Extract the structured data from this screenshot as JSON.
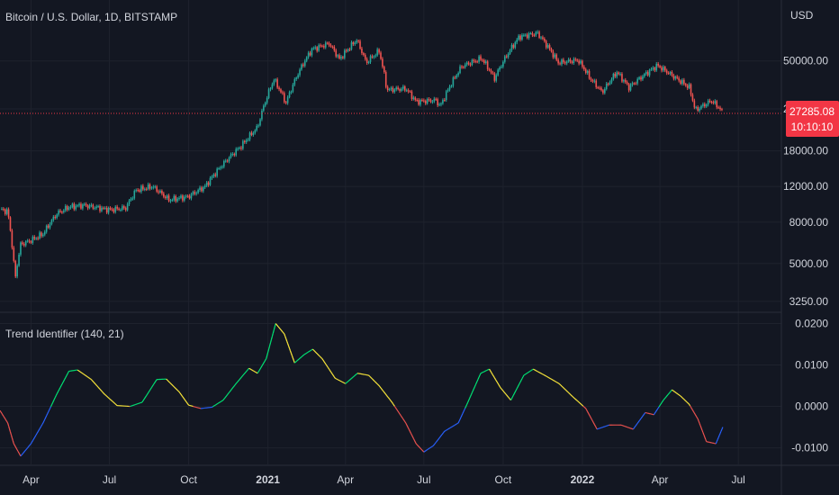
{
  "main_pane": {
    "symbol_title": "Bitcoin / U.S. Dollar, 1D, BITSTAMP",
    "currency_label": "USD",
    "price_ticks": [
      {
        "label": "50000.00",
        "value": 50000
      },
      {
        "label": "29000.00",
        "value": 29000
      },
      {
        "label": "18000.00",
        "value": 18000
      },
      {
        "label": "12000.00",
        "value": 12000
      },
      {
        "label": "8000.00",
        "value": 8000
      },
      {
        "label": "5000.00",
        "value": 5000
      },
      {
        "label": "3250.00",
        "value": 3250
      }
    ],
    "last_price_label": "27285.08",
    "countdown_label": "10:10:10",
    "last_price_value": 27285.08,
    "up_color": "#26a69a",
    "down_color": "#ef5350",
    "price_tag_color": "#f23645"
  },
  "indicator_pane": {
    "title": "Trend Identifier (140, 21)",
    "ticks": [
      {
        "label": "0.0200",
        "value": 0.02
      },
      {
        "label": "0.0100",
        "value": 0.01
      },
      {
        "label": "0.0000",
        "value": 0.0
      },
      {
        "label": "-0.0100",
        "value": -0.01
      }
    ],
    "trend_colors": {
      "strong_up": "#00e676",
      "up": "#ffeb3b",
      "down": "#ef5350",
      "strong_down": "#2962ff"
    }
  },
  "time_axis": {
    "labels": [
      {
        "label": "Apr",
        "bold": false
      },
      {
        "label": "Jul",
        "bold": false
      },
      {
        "label": "Oct",
        "bold": false
      },
      {
        "label": "2021",
        "bold": true
      },
      {
        "label": "Apr",
        "bold": false
      },
      {
        "label": "Jul",
        "bold": false
      },
      {
        "label": "Oct",
        "bold": false
      },
      {
        "label": "2022",
        "bold": true
      },
      {
        "label": "Apr",
        "bold": false
      },
      {
        "label": "Jul",
        "bold": false
      }
    ]
  },
  "chart_data": [
    {
      "type": "candlestick",
      "title": "Bitcoin / U.S. Dollar, 1D, BITSTAMP",
      "ylabel": "USD",
      "y_scale": "log",
      "ylim": [
        2900,
        100000
      ],
      "x_start": "2020-02-25",
      "x_end": "2022-08-20",
      "series": [
        {
          "name": "BTCUSD",
          "points": [
            [
              "2020-02-25",
              9300
            ],
            [
              "2020-03-05",
              9000
            ],
            [
              "2020-03-12",
              5000
            ],
            [
              "2020-03-13",
              4000
            ],
            [
              "2020-03-20",
              6200
            ],
            [
              "2020-04-01",
              6500
            ],
            [
              "2020-04-15",
              7000
            ],
            [
              "2020-05-01",
              8800
            ],
            [
              "2020-05-15",
              9500
            ],
            [
              "2020-06-01",
              9700
            ],
            [
              "2020-07-01",
              9200
            ],
            [
              "2020-07-20",
              9400
            ],
            [
              "2020-08-01",
              11500
            ],
            [
              "2020-08-20",
              12000
            ],
            [
              "2020-09-08",
              10300
            ],
            [
              "2020-10-01",
              10700
            ],
            [
              "2020-10-20",
              12000
            ],
            [
              "2020-11-10",
              15500
            ],
            [
              "2020-12-01",
              19000
            ],
            [
              "2020-12-20",
              23500
            ],
            [
              "2021-01-08",
              40500
            ],
            [
              "2021-01-22",
              31000
            ],
            [
              "2021-02-08",
              46000
            ],
            [
              "2021-02-21",
              57000
            ],
            [
              "2021-03-13",
              61000
            ],
            [
              "2021-03-25",
              51000
            ],
            [
              "2021-04-14",
              63500
            ],
            [
              "2021-04-25",
              49000
            ],
            [
              "2021-05-10",
              56000
            ],
            [
              "2021-05-19",
              36000
            ],
            [
              "2021-06-10",
              36500
            ],
            [
              "2021-06-22",
              31500
            ],
            [
              "2021-07-15",
              32000
            ],
            [
              "2021-07-20",
              29800
            ],
            [
              "2021-08-14",
              47000
            ],
            [
              "2021-09-06",
              51500
            ],
            [
              "2021-09-21",
              41000
            ],
            [
              "2021-10-20",
              66000
            ],
            [
              "2021-11-10",
              68500
            ],
            [
              "2021-12-04",
              49000
            ],
            [
              "2021-12-27",
              50500
            ],
            [
              "2022-01-10",
              41000
            ],
            [
              "2022-01-24",
              35000
            ],
            [
              "2022-02-10",
              44000
            ],
            [
              "2022-02-24",
              37000
            ],
            [
              "2022-03-29",
              47500
            ],
            [
              "2022-04-20",
              41000
            ],
            [
              "2022-05-05",
              37000
            ],
            [
              "2022-05-12",
              28500
            ],
            [
              "2022-05-31",
              31800
            ],
            [
              "2022-06-10",
              29000
            ],
            [
              "2022-06-13",
              27285
            ]
          ]
        }
      ]
    },
    {
      "type": "line",
      "title": "Trend Identifier (140, 21)",
      "ylim": [
        -0.014,
        0.0225
      ],
      "series": [
        {
          "name": "Trend Identifier",
          "points": [
            [
              "2020-02-25",
              -0.001
            ],
            [
              "2020-03-05",
              -0.004
            ],
            [
              "2020-03-12",
              -0.009
            ],
            [
              "2020-03-20",
              -0.012
            ],
            [
              "2020-04-01",
              -0.009
            ],
            [
              "2020-04-15",
              -0.004
            ],
            [
              "2020-05-01",
              0.003
            ],
            [
              "2020-05-15",
              0.0085
            ],
            [
              "2020-05-25",
              0.0088
            ],
            [
              "2020-06-10",
              0.0065
            ],
            [
              "2020-06-25",
              0.003
            ],
            [
              "2020-07-10",
              0.0002
            ],
            [
              "2020-07-25",
              0.0
            ],
            [
              "2020-08-08",
              0.001
            ],
            [
              "2020-08-25",
              0.0065
            ],
            [
              "2020-09-05",
              0.0066
            ],
            [
              "2020-09-20",
              0.0035
            ],
            [
              "2020-10-01",
              0.0003
            ],
            [
              "2020-10-15",
              -0.0005
            ],
            [
              "2020-10-28",
              -0.0002
            ],
            [
              "2020-11-10",
              0.0015
            ],
            [
              "2020-11-25",
              0.0055
            ],
            [
              "2020-12-10",
              0.0092
            ],
            [
              "2020-12-20",
              0.008
            ],
            [
              "2020-12-30",
              0.0115
            ],
            [
              "2021-01-10",
              0.02
            ],
            [
              "2021-01-20",
              0.0175
            ],
            [
              "2021-02-01",
              0.0105
            ],
            [
              "2021-02-12",
              0.0125
            ],
            [
              "2021-02-22",
              0.0138
            ],
            [
              "2021-03-05",
              0.0115
            ],
            [
              "2021-03-20",
              0.0068
            ],
            [
              "2021-04-01",
              0.0055
            ],
            [
              "2021-04-15",
              0.008
            ],
            [
              "2021-04-28",
              0.0075
            ],
            [
              "2021-05-10",
              0.005
            ],
            [
              "2021-05-25",
              0.001
            ],
            [
              "2021-06-10",
              -0.004
            ],
            [
              "2021-06-22",
              -0.009
            ],
            [
              "2021-07-01",
              -0.011
            ],
            [
              "2021-07-12",
              -0.0095
            ],
            [
              "2021-07-25",
              -0.006
            ],
            [
              "2021-08-10",
              -0.004
            ],
            [
              "2021-08-20",
              0.0005
            ],
            [
              "2021-09-05",
              0.008
            ],
            [
              "2021-09-15",
              0.009
            ],
            [
              "2021-09-28",
              0.0045
            ],
            [
              "2021-10-10",
              0.0015
            ],
            [
              "2021-10-25",
              0.0075
            ],
            [
              "2021-11-05",
              0.009
            ],
            [
              "2021-11-20",
              0.0073
            ],
            [
              "2021-12-05",
              0.0055
            ],
            [
              "2021-12-20",
              0.0025
            ],
            [
              "2022-01-05",
              -0.0005
            ],
            [
              "2022-01-18",
              -0.0055
            ],
            [
              "2022-02-01",
              -0.0045
            ],
            [
              "2022-02-15",
              -0.0045
            ],
            [
              "2022-03-01",
              -0.0055
            ],
            [
              "2022-03-15",
              -0.0015
            ],
            [
              "2022-03-25",
              -0.002
            ],
            [
              "2022-04-05",
              0.0015
            ],
            [
              "2022-04-15",
              0.004
            ],
            [
              "2022-04-25",
              0.0025
            ],
            [
              "2022-05-05",
              0.0005
            ],
            [
              "2022-05-15",
              -0.003
            ],
            [
              "2022-05-25",
              -0.0085
            ],
            [
              "2022-06-05",
              -0.009
            ],
            [
              "2022-06-13",
              -0.005
            ]
          ]
        }
      ]
    }
  ]
}
